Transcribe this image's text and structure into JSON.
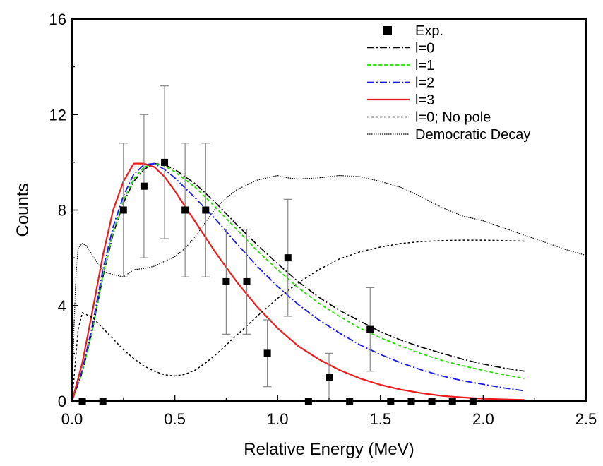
{
  "chart_data": {
    "type": "scatter",
    "xlabel": "Relative Energy (MeV)",
    "ylabel": "Counts",
    "xlim": [
      0.0,
      2.5
    ],
    "ylim": [
      0,
      16
    ],
    "xticks": [
      "0.0",
      "0.5",
      "1.0",
      "1.5",
      "2.0",
      "2.5"
    ],
    "xtick_values": [
      0.0,
      0.5,
      1.0,
      1.5,
      2.0,
      2.5
    ],
    "yticks": [
      "0",
      "4",
      "8",
      "12",
      "16"
    ],
    "ytick_values": [
      0,
      4,
      8,
      12,
      16
    ],
    "grid": false,
    "legend_position": "top-right",
    "experiment": {
      "name": "Exp.",
      "color": "#000000",
      "points": [
        {
          "x": 0.05,
          "y": 0
        },
        {
          "x": 0.15,
          "y": 0
        },
        {
          "x": 0.25,
          "y": 8,
          "err_low": 2.8,
          "err_high": 2.8
        },
        {
          "x": 0.35,
          "y": 9,
          "err_low": 3.0,
          "err_high": 3.0
        },
        {
          "x": 0.45,
          "y": 10,
          "err_low": 3.2,
          "err_high": 3.2
        },
        {
          "x": 0.55,
          "y": 8,
          "err_low": 2.8,
          "err_high": 2.8
        },
        {
          "x": 0.65,
          "y": 8,
          "err_low": 2.8,
          "err_high": 2.8
        },
        {
          "x": 0.75,
          "y": 5,
          "err_low": 2.2,
          "err_high": 2.2
        },
        {
          "x": 0.85,
          "y": 5,
          "err_low": 2.2,
          "err_high": 2.2
        },
        {
          "x": 0.95,
          "y": 2,
          "err_low": 1.4,
          "err_high": 1.4
        },
        {
          "x": 1.05,
          "y": 6,
          "err_low": 2.45,
          "err_high": 2.45
        },
        {
          "x": 1.15,
          "y": 0
        },
        {
          "x": 1.25,
          "y": 1,
          "err_low": 1.0,
          "err_high": 1.0
        },
        {
          "x": 1.35,
          "y": 0
        },
        {
          "x": 1.45,
          "y": 3,
          "err_low": 1.75,
          "err_high": 1.75
        },
        {
          "x": 1.55,
          "y": 0
        },
        {
          "x": 1.65,
          "y": 0
        },
        {
          "x": 1.75,
          "y": 0
        },
        {
          "x": 1.85,
          "y": 0
        },
        {
          "x": 1.95,
          "y": 0
        }
      ]
    },
    "series": [
      {
        "name": "l=0",
        "color": "#000000",
        "dash": "10,3,2,3",
        "width": 1.6,
        "x": [
          0,
          0.05,
          0.1,
          0.15,
          0.2,
          0.25,
          0.3,
          0.35,
          0.4,
          0.45,
          0.5,
          0.6,
          0.7,
          0.8,
          0.9,
          1.0,
          1.1,
          1.2,
          1.3,
          1.4,
          1.5,
          1.6,
          1.7,
          1.8,
          1.9,
          2.0,
          2.1,
          2.2
        ],
        "y": [
          0,
          1.2,
          3.0,
          5.2,
          7.0,
          8.3,
          9.2,
          9.7,
          9.95,
          9.9,
          9.7,
          9.1,
          8.3,
          7.4,
          6.55,
          5.75,
          5.0,
          4.35,
          3.8,
          3.35,
          2.9,
          2.55,
          2.25,
          2.0,
          1.75,
          1.55,
          1.38,
          1.25
        ]
      },
      {
        "name": "l=1",
        "color": "#22dd00",
        "dash": "5,3",
        "width": 1.8,
        "x": [
          0,
          0.05,
          0.1,
          0.15,
          0.2,
          0.25,
          0.3,
          0.35,
          0.4,
          0.45,
          0.5,
          0.6,
          0.7,
          0.8,
          0.9,
          1.0,
          1.1,
          1.2,
          1.3,
          1.4,
          1.5,
          1.6,
          1.7,
          1.8,
          1.9,
          2.0,
          2.1,
          2.2
        ],
        "y": [
          0,
          1.2,
          3.0,
          5.3,
          7.1,
          8.4,
          9.3,
          9.8,
          9.95,
          9.85,
          9.6,
          8.95,
          8.1,
          7.2,
          6.3,
          5.5,
          4.75,
          4.1,
          3.55,
          3.05,
          2.65,
          2.3,
          1.98,
          1.7,
          1.48,
          1.28,
          1.1,
          0.95
        ]
      },
      {
        "name": "l=2",
        "color": "#1a1aee",
        "dash": "10,3,2,3",
        "width": 1.8,
        "x": [
          0,
          0.05,
          0.1,
          0.15,
          0.2,
          0.25,
          0.3,
          0.35,
          0.4,
          0.45,
          0.5,
          0.6,
          0.7,
          0.8,
          0.9,
          1.0,
          1.1,
          1.2,
          1.3,
          1.4,
          1.5,
          1.6,
          1.7,
          1.8,
          1.9,
          2.0,
          2.1,
          2.2
        ],
        "y": [
          0,
          1.3,
          3.2,
          5.5,
          7.3,
          8.6,
          9.5,
          9.9,
          9.95,
          9.7,
          9.35,
          8.5,
          7.6,
          6.6,
          5.65,
          4.8,
          4.05,
          3.4,
          2.85,
          2.35,
          1.95,
          1.6,
          1.3,
          1.05,
          0.85,
          0.7,
          0.55,
          0.43
        ]
      },
      {
        "name": "l=3",
        "color": "#ee1c1c",
        "dash": "",
        "width": 2.2,
        "x": [
          0,
          0.05,
          0.1,
          0.15,
          0.2,
          0.25,
          0.3,
          0.35,
          0.4,
          0.45,
          0.5,
          0.6,
          0.7,
          0.8,
          0.9,
          1.0,
          1.1,
          1.2,
          1.3,
          1.4,
          1.5,
          1.6,
          1.7,
          1.8,
          1.9,
          2.0,
          2.1,
          2.2
        ],
        "y": [
          0,
          1.6,
          3.8,
          6.1,
          8.0,
          9.2,
          9.95,
          9.95,
          9.8,
          9.4,
          8.8,
          7.5,
          6.2,
          5.0,
          3.95,
          3.05,
          2.3,
          1.75,
          1.3,
          0.95,
          0.68,
          0.48,
          0.33,
          0.22,
          0.15,
          0.1,
          0.07,
          0.05
        ]
      },
      {
        "name": "l=0; No pole",
        "color": "#000000",
        "dash": "3,3",
        "width": 1.5,
        "x": [
          0,
          0.03,
          0.05,
          0.1,
          0.15,
          0.2,
          0.25,
          0.3,
          0.35,
          0.4,
          0.45,
          0.5,
          0.55,
          0.6,
          0.65,
          0.7,
          0.8,
          0.9,
          1.0,
          1.1,
          1.2,
          1.3,
          1.4,
          1.5,
          1.6,
          1.7,
          1.8,
          1.9,
          2.0,
          2.1,
          2.2
        ],
        "y": [
          0,
          3.0,
          3.7,
          3.5,
          3.05,
          2.6,
          2.15,
          1.78,
          1.47,
          1.25,
          1.1,
          1.05,
          1.12,
          1.3,
          1.6,
          1.95,
          2.75,
          3.55,
          4.3,
          4.95,
          5.5,
          5.95,
          6.25,
          6.45,
          6.6,
          6.68,
          6.72,
          6.74,
          6.74,
          6.72,
          6.7
        ]
      },
      {
        "name": "Democratic Decay",
        "color": "#000000",
        "dash": "1.5,1.5",
        "width": 1.2,
        "x": [
          0,
          0.01,
          0.02,
          0.03,
          0.05,
          0.07,
          0.1,
          0.13,
          0.16,
          0.2,
          0.25,
          0.3,
          0.35,
          0.4,
          0.45,
          0.5,
          0.55,
          0.6,
          0.65,
          0.7,
          0.75,
          0.8,
          0.85,
          0.9,
          0.95,
          1.0,
          1.05,
          1.1,
          1.2,
          1.3,
          1.4,
          1.5,
          1.6,
          1.7,
          1.8,
          1.9,
          2.0,
          2.1,
          2.2,
          2.3,
          2.4,
          2.5
        ],
        "y": [
          0,
          3.2,
          5.4,
          6.4,
          6.6,
          6.5,
          6.1,
          5.7,
          5.4,
          5.3,
          5.2,
          5.5,
          5.55,
          5.65,
          5.85,
          6.05,
          6.4,
          6.9,
          7.5,
          8.1,
          8.5,
          8.85,
          9.05,
          9.25,
          9.35,
          9.45,
          9.35,
          9.3,
          9.35,
          9.45,
          9.4,
          9.2,
          8.95,
          8.55,
          8.1,
          7.75,
          7.55,
          7.25,
          6.95,
          6.65,
          6.35,
          6.1
        ]
      }
    ]
  }
}
